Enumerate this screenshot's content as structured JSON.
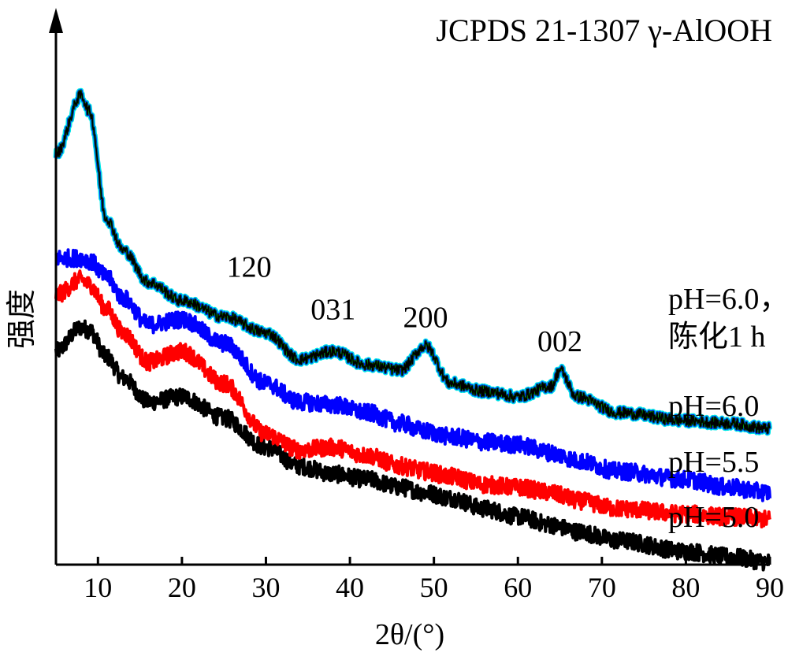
{
  "chart_data": {
    "type": "line",
    "title": "JCPDS 21-1307 γ-AlOOH",
    "xlabel": "2θ/(°)",
    "ylabel": "强度",
    "xlim": [
      5,
      90
    ],
    "ylim": [
      0,
      10
    ],
    "xticks": [
      "10",
      "20",
      "30",
      "40",
      "50",
      "60",
      "70",
      "80",
      "90"
    ],
    "x": [
      5,
      8,
      9,
      11,
      13,
      16,
      20,
      25,
      30,
      34,
      38,
      42,
      46,
      49,
      52,
      56,
      60,
      64,
      65,
      67,
      72,
      80,
      85,
      90
    ],
    "series": [
      {
        "name": "pH=5.0",
        "color": "#000000",
        "values": [
          4.0,
          4.45,
          4.4,
          3.9,
          3.5,
          3.05,
          3.15,
          2.75,
          2.2,
          1.85,
          1.7,
          1.6,
          1.45,
          1.35,
          1.25,
          1.05,
          0.9,
          0.75,
          0.7,
          0.62,
          0.45,
          0.25,
          0.15,
          0.05
        ]
      },
      {
        "name": "pH=5.5",
        "color": "#ff0000",
        "values": [
          5.05,
          5.35,
          5.25,
          4.8,
          4.35,
          3.8,
          4.0,
          3.4,
          2.45,
          2.15,
          2.2,
          2.05,
          1.85,
          1.75,
          1.65,
          1.5,
          1.45,
          1.35,
          1.3,
          1.2,
          1.05,
          0.95,
          0.9,
          0.85
        ]
      },
      {
        "name": "pH=6.0",
        "color": "#0000ff",
        "values": [
          5.75,
          5.75,
          5.7,
          5.4,
          5.0,
          4.5,
          4.6,
          4.15,
          3.4,
          3.05,
          3.0,
          2.85,
          2.65,
          2.5,
          2.4,
          2.3,
          2.25,
          2.1,
          2.05,
          1.95,
          1.75,
          1.6,
          1.45,
          1.35
        ]
      },
      {
        "name": "pH=6.0，陈化1 h",
        "color": "#2d6e4a",
        "values": [
          7.7,
          8.8,
          8.5,
          6.5,
          5.9,
          5.3,
          4.95,
          4.65,
          4.35,
          3.85,
          4.0,
          3.75,
          3.65,
          4.1,
          3.4,
          3.25,
          3.15,
          3.35,
          3.65,
          3.15,
          2.85,
          2.7,
          2.65,
          2.55
        ]
      }
    ],
    "legend_labels": [
      "pH=6.0，",
      "陈化1 h",
      "pH=6.0",
      "pH=5.5",
      "pH=5.0"
    ],
    "peak_labels": [
      {
        "text": "120",
        "x": 28,
        "y": 5.4
      },
      {
        "text": "031",
        "x": 38,
        "y": 4.6
      },
      {
        "text": "200",
        "x": 49,
        "y": 4.45
      },
      {
        "text": "002",
        "x": 65,
        "y": 4.0
      }
    ],
    "grid": false,
    "legend_position": "right, next to curves"
  }
}
